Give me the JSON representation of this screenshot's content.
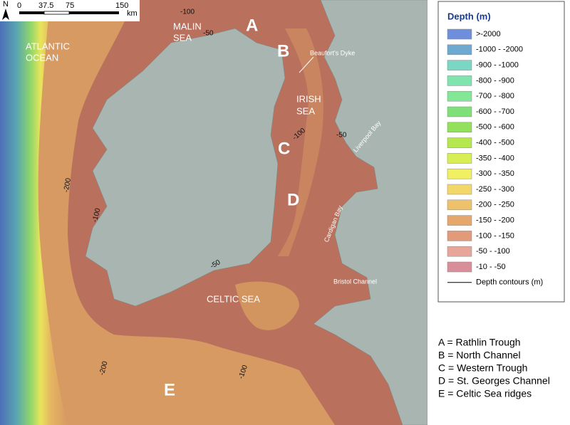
{
  "scale_bar": {
    "north": "N",
    "labels": [
      "0",
      "37.5",
      "75",
      "150"
    ],
    "unit": "km"
  },
  "map_labels": {
    "seas": [
      [
        "MALIN",
        "SEA"
      ],
      [
        "ATLANTIC",
        "OCEAN"
      ],
      [
        "IRISH",
        "SEA"
      ],
      [
        "CELTIC SEA"
      ]
    ],
    "letters": [
      "A",
      "B",
      "C",
      "D",
      "E"
    ],
    "features": [
      "Beaufort's Dyke",
      "Liverpool Bay",
      "Cardigan Bay",
      "Bristol Channel"
    ],
    "contours": [
      "-100",
      "-50",
      "-100",
      "-50",
      "-200",
      "-100",
      "-50",
      "-200",
      "-100"
    ]
  },
  "legend": {
    "title": "Depth (m)",
    "entries": [
      {
        "label": ">-2000",
        "color": "#6f8fdc"
      },
      {
        "label": "-1000 - -2000",
        "color": "#6ea9d2"
      },
      {
        "label": "-900 - -1000",
        "color": "#79d7c4"
      },
      {
        "label": "-800 - -900",
        "color": "#7fe4ae"
      },
      {
        "label": "-700 - -800",
        "color": "#83e895"
      },
      {
        "label": "-600 - -700",
        "color": "#7fe07a"
      },
      {
        "label": "-500 - -600",
        "color": "#93e05c"
      },
      {
        "label": "-400 - -500",
        "color": "#b5e84f"
      },
      {
        "label": "-350 - -400",
        "color": "#d8ee55"
      },
      {
        "label": "-300 - -350",
        "color": "#f1ef63"
      },
      {
        "label": "-250 - -300",
        "color": "#f2d86a"
      },
      {
        "label": "-200 - -250",
        "color": "#eec26b"
      },
      {
        "label": "-150 - -200",
        "color": "#e6a76d"
      },
      {
        "label": "-100 - -150",
        "color": "#e39a78"
      },
      {
        "label": "-50 - -100",
        "color": "#e8a59a"
      },
      {
        "label": "-10 - -50",
        "color": "#d98f9a"
      }
    ],
    "contour_label": "Depth contours (m)"
  },
  "key": [
    "A = Rathlin Trough",
    "B = North Channel",
    "C = Western Trough",
    "D = St. Georges Channel",
    "E = Celtic Sea ridges"
  ]
}
